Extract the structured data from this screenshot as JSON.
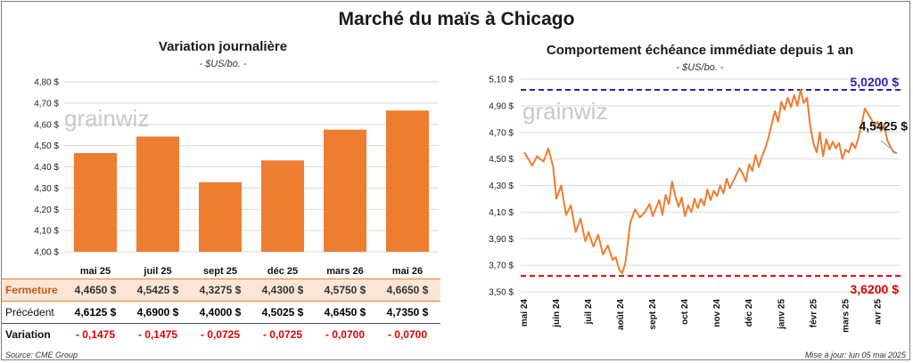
{
  "title": "Marché du maïs à Chicago",
  "left": {
    "title": "Variation journalière",
    "unit": "- $US/bo. -",
    "watermark": "grainwiz",
    "chart_data": {
      "type": "bar",
      "categories": [
        "mai 25",
        "juil 25",
        "sept 25",
        "déc 25",
        "mars 26",
        "mai 26"
      ],
      "values": [
        4.465,
        4.5425,
        4.3275,
        4.43,
        4.575,
        4.665
      ],
      "ylim": [
        4.0,
        4.8
      ],
      "yticks": [
        "4,00 $",
        "4,10 $",
        "4,20 $",
        "4,30 $",
        "4,40 $",
        "4,50 $",
        "4,60 $",
        "4,70 $",
        "4,80 $"
      ],
      "bar_color": "#ed7d31",
      "grid": true
    },
    "table": {
      "rows": [
        {
          "label": "Fermeture",
          "values": [
            "4,4650 $",
            "4,5425 $",
            "4,3275 $",
            "4,4300 $",
            "4,5750 $",
            "4,6650 $"
          ],
          "label_color": "#c55a11",
          "bg": "#fbe5d6"
        },
        {
          "label": "Précédent",
          "values": [
            "4,6125 $",
            "4,6900 $",
            "4,4000 $",
            "4,5025 $",
            "4,6450 $",
            "4,7350 $"
          ],
          "label_color": "#111111",
          "bg": "#ffffff"
        },
        {
          "label": "Variation",
          "values": [
            "- 0,1475",
            "- 0,1475",
            "- 0,0725",
            "- 0,0725",
            "- 0,0700",
            "- 0,0700"
          ],
          "label_color": "#111111",
          "value_color": "#e00000",
          "bg": "#ffffff"
        }
      ]
    }
  },
  "right": {
    "title": "Comportement échéance immédiate depuis 1 an",
    "unit": "- $US/bo. -",
    "watermark": "grainwiz",
    "chart_data": {
      "type": "line",
      "ylim": [
        3.5,
        5.1
      ],
      "yticks": [
        "3,50 $",
        "3,70 $",
        "3,90 $",
        "4,10 $",
        "4,30 $",
        "4,50 $",
        "4,70 $",
        "4,90 $",
        "5,10 $"
      ],
      "xticks": [
        "mai 24",
        "juin 24",
        "juil 24",
        "août 24",
        "sept 24",
        "oct 24",
        "nov 24",
        "déc 24",
        "janv 25",
        "févr 25",
        "mars 25",
        "avr 25"
      ],
      "series": [
        {
          "color": "#ed7d31",
          "x": [
            0,
            0.25,
            0.4,
            0.6,
            0.75,
            0.9,
            1.0,
            1.15,
            1.3,
            1.45,
            1.6,
            1.75,
            1.9,
            2.0,
            2.15,
            2.3,
            2.45,
            2.6,
            2.75,
            2.85,
            2.95,
            3.05,
            3.15,
            3.3,
            3.45,
            3.6,
            3.75,
            3.9,
            4.0,
            4.1,
            4.2,
            4.3,
            4.4,
            4.5,
            4.6,
            4.7,
            4.8,
            4.9,
            5.0,
            5.1,
            5.2,
            5.3,
            5.4,
            5.5,
            5.6,
            5.7,
            5.8,
            5.9,
            6.0,
            6.1,
            6.2,
            6.3,
            6.4,
            6.5,
            6.6,
            6.7,
            6.8,
            6.9,
            7.0,
            7.1,
            7.2,
            7.3,
            7.4,
            7.5,
            7.6,
            7.7,
            7.8,
            7.9,
            8.0,
            8.1,
            8.2,
            8.3,
            8.4,
            8.5,
            8.6,
            8.7,
            8.8,
            8.9,
            9.0,
            9.1,
            9.2,
            9.3,
            9.4,
            9.5,
            9.6,
            9.7,
            9.8,
            9.9,
            10.0,
            10.1,
            10.2,
            10.3,
            10.4,
            10.5,
            10.6,
            10.7,
            10.8,
            10.9,
            11.0,
            11.1,
            11.2,
            11.3,
            11.4,
            11.5,
            11.6
          ],
          "y": [
            4.55,
            4.45,
            4.52,
            4.48,
            4.58,
            4.44,
            4.2,
            4.3,
            4.08,
            4.15,
            3.95,
            4.05,
            3.88,
            3.95,
            3.84,
            3.93,
            3.78,
            3.85,
            3.74,
            3.76,
            3.67,
            3.64,
            3.72,
            4.02,
            4.12,
            4.06,
            4.1,
            4.16,
            4.07,
            4.13,
            4.19,
            4.08,
            4.23,
            4.16,
            4.33,
            4.22,
            4.14,
            4.21,
            4.07,
            4.15,
            4.1,
            4.2,
            4.13,
            4.2,
            4.15,
            4.27,
            4.19,
            4.26,
            4.22,
            4.3,
            4.24,
            4.35,
            4.28,
            4.33,
            4.38,
            4.43,
            4.39,
            4.33,
            4.46,
            4.41,
            4.53,
            4.44,
            4.52,
            4.58,
            4.66,
            4.76,
            4.86,
            4.78,
            4.93,
            4.87,
            4.96,
            4.89,
            4.98,
            4.9,
            5.02,
            4.92,
            4.96,
            4.75,
            4.62,
            4.55,
            4.7,
            4.52,
            4.65,
            4.57,
            4.63,
            4.58,
            4.62,
            4.5,
            4.57,
            4.55,
            4.62,
            4.58,
            4.66,
            4.76,
            4.88,
            4.84,
            4.8,
            4.75,
            4.78,
            4.71,
            4.76,
            4.64,
            4.59,
            4.55,
            4.5425
          ]
        }
      ],
      "max_line": {
        "value": 5.02,
        "label": "5,0200 $",
        "color": "#2a22b8"
      },
      "min_line": {
        "value": 3.62,
        "label": "3,6200 $",
        "color": "#e00000"
      },
      "last_label": "4,5425 $",
      "grid": true
    }
  },
  "footer": {
    "source": "Source: CME Group",
    "updated": "Mise à jour: lun 05 mai 2025"
  }
}
